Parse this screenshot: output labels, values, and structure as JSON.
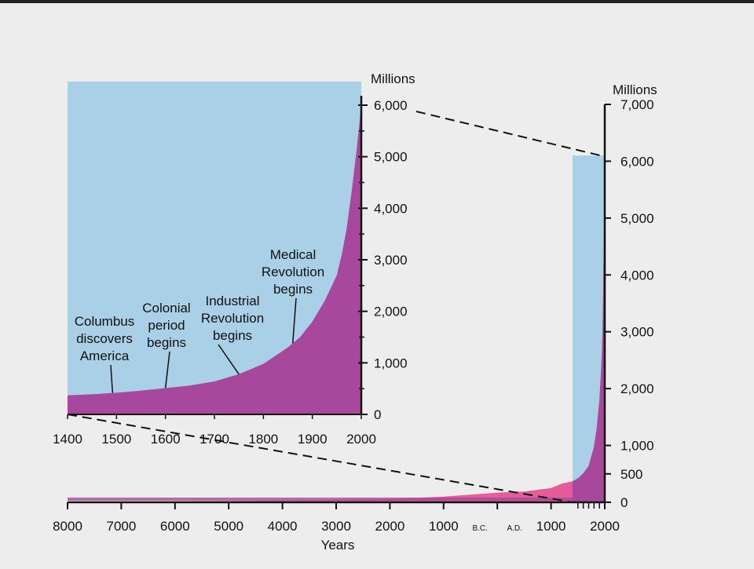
{
  "colors": {
    "background": "#ededed",
    "sky": "#a9d0e6",
    "inset_population": "#a8489c",
    "main_population": "#e65c9a",
    "main_dark_band": "#a8489c",
    "axis": "#111111",
    "top_border": "#222222"
  },
  "chart_data": [
    {
      "id": "inset",
      "type": "area",
      "x_unit": "years (A.D.)",
      "xlim": [
        1400,
        2000
      ],
      "ylim": [
        0,
        6000
      ],
      "ylabel": "Millions",
      "x_ticks": [
        1400,
        1500,
        1600,
        1700,
        1800,
        1900,
        2000
      ],
      "x_tick_labels": [
        "1400",
        "1500",
        "1600",
        "1700",
        "1800",
        "1900",
        "2000"
      ],
      "y_ticks": [
        0,
        1000,
        2000,
        3000,
        4000,
        5000,
        6000
      ],
      "y_tick_labels": [
        "0",
        "1,000",
        "2,000",
        "3,000",
        "4,000",
        "5,000",
        "6,000"
      ],
      "series": [
        {
          "x": [
            1400,
            1450,
            1500,
            1550,
            1600,
            1650,
            1700,
            1750,
            1800,
            1850,
            1875,
            1900,
            1925,
            1950,
            1960,
            1970,
            1980,
            1990,
            2000
          ],
          "y": [
            370,
            390,
            420,
            460,
            510,
            560,
            640,
            780,
            980,
            1300,
            1500,
            1800,
            2200,
            2700,
            3100,
            3600,
            4300,
            5100,
            6000
          ]
        }
      ],
      "annotations": [
        {
          "lines": [
            "Columbus",
            "discovers",
            "America"
          ],
          "x": 1492,
          "y": 400
        },
        {
          "lines": [
            "Colonial",
            "period",
            "begins"
          ],
          "x": 1600,
          "y": 520
        },
        {
          "lines": [
            "Industrial",
            "Revolution",
            "begins"
          ],
          "x": 1750,
          "y": 780
        },
        {
          "lines": [
            "Medical",
            "Revolution",
            "begins"
          ],
          "x": 1860,
          "y": 1350
        }
      ]
    },
    {
      "id": "main",
      "type": "area",
      "x_unit": "years (negative = B.C.)",
      "xlim": [
        -8000,
        2000
      ],
      "ylim": [
        0,
        7000
      ],
      "xlabel": "Years",
      "ylabel": "Millions",
      "x_ticks": [
        -8000,
        -7000,
        -6000,
        -5000,
        -4000,
        -3000,
        -2000,
        -1000,
        0,
        1000,
        2000
      ],
      "x_tick_labels": [
        "8000",
        "7000",
        "6000",
        "5000",
        "4000",
        "3000",
        "2000",
        "1000",
        "",
        "1000",
        "2000"
      ],
      "era_labels": [
        "B.C.",
        "A.D."
      ],
      "y_ticks": [
        0,
        500,
        1000,
        2000,
        3000,
        4000,
        5000,
        6000,
        7000
      ],
      "y_tick_labels": [
        "0",
        "500",
        "1,000",
        "2,000",
        "3,000",
        "4,000",
        "5,000",
        "6,000",
        "7,000"
      ],
      "series": [
        {
          "x": [
            -8000,
            -6000,
            -4000,
            -2000,
            -1000,
            0,
            500,
            1000,
            1200,
            1400,
            1500,
            1600,
            1700,
            1800,
            1850,
            1900,
            1925,
            1950,
            1970,
            1985,
            2000
          ],
          "y": [
            5,
            15,
            30,
            60,
            100,
            170,
            190,
            250,
            330,
            370,
            420,
            510,
            640,
            980,
            1300,
            1800,
            2200,
            2700,
            3600,
            4800,
            6100
          ]
        }
      ],
      "zoom_region": {
        "x": [
          1400,
          2000
        ],
        "y": [
          0,
          6100
        ]
      }
    }
  ]
}
